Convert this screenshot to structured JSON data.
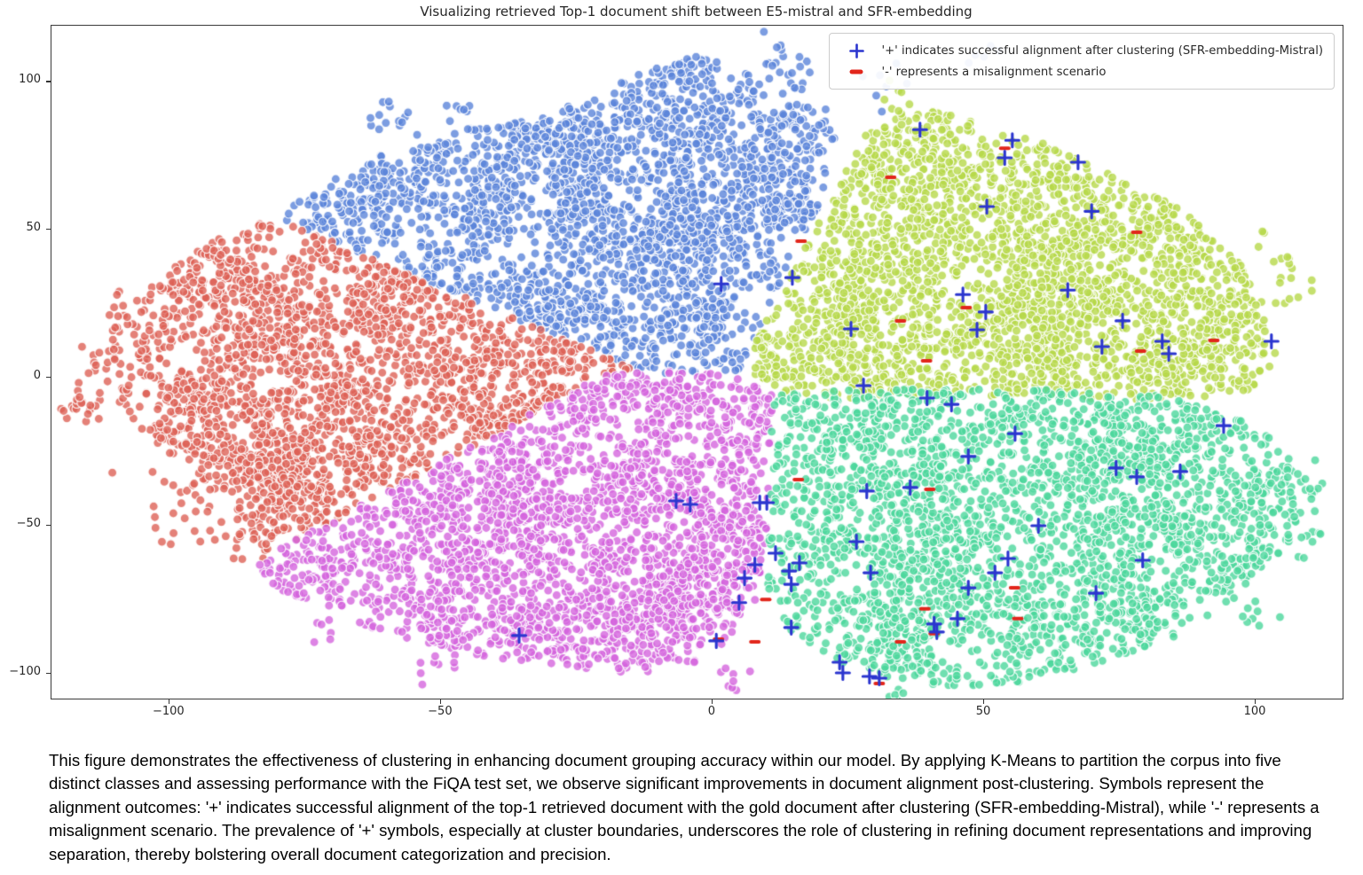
{
  "figure": {
    "title": "Visualizing retrieved Top-1 document shift between E5-mistral and SFR-embedding",
    "legend": {
      "items": [
        {
          "marker": "plus",
          "color": "#2b35cf",
          "label": "'+' indicates successful alignment after clustering (SFR-embedding-Mistral)"
        },
        {
          "marker": "minus",
          "color": "#e2261b",
          "label": "'-' represents a misalignment scenario"
        }
      ]
    },
    "caption": "This figure demonstrates the effectiveness of clustering in enhancing document grouping accuracy within our model. By applying K-Means to partition the corpus into five distinct classes and assessing performance with the FiQA test set, we observe significant improvements in document alignment post-clustering. Symbols represent the alignment outcomes: '+' indicates successful alignment of the top-1 retrieved document with the gold document after clustering (SFR-embedding-Mistral), while '-' represents a misalignment scenario. The prevalence of '+' symbols, especially at cluster boundaries, underscores the role of clustering in refining document representations and improving separation, thereby bolstering overall document categorization and precision."
  },
  "chart_data": {
    "type": "scatter",
    "title": "Visualizing retrieved Top-1 document shift between E5-mistral and SFR-embedding",
    "xlabel": "",
    "ylabel": "",
    "xlim": [
      -121.7,
      116.0
    ],
    "ylim": [
      -108.4,
      118.9
    ],
    "x_ticks": [
      -100,
      -50,
      0,
      50,
      100
    ],
    "y_ticks": [
      100,
      50,
      0,
      -50,
      -100
    ],
    "x_tick_labels": [
      "−100",
      "−50",
      "0",
      "50",
      "100"
    ],
    "y_tick_labels": [
      "100",
      "50",
      "0",
      "−50",
      "−100"
    ],
    "grid": false,
    "legend_position": "upper right",
    "point_alpha": 0.8,
    "clusters": [
      {
        "name": "cluster-blue-top",
        "color": "#5b84d9",
        "count": 2600,
        "polygon": [
          [
            -13,
            2
          ],
          [
            -80,
            54
          ],
          [
            -73,
            64
          ],
          [
            -60,
            76
          ],
          [
            -45,
            84
          ],
          [
            -32,
            88
          ],
          [
            -22,
            95
          ],
          [
            -12,
            104
          ],
          [
            -2,
            109
          ],
          [
            6,
            103
          ],
          [
            13,
            96
          ],
          [
            20,
            92
          ],
          [
            24,
            86
          ],
          [
            20,
            60
          ],
          [
            12,
            30
          ],
          [
            5,
            2
          ],
          [
            -4,
            -1
          ]
        ],
        "satellites": [
          [
            12,
            108,
            2.5,
            14
          ],
          [
            17,
            100,
            2,
            8
          ],
          [
            -60,
            88,
            3,
            14
          ],
          [
            -47,
            90,
            2,
            8
          ],
          [
            33,
            100,
            2.5,
            8
          ],
          [
            50,
            108,
            1.5,
            5
          ]
        ]
      },
      {
        "name": "cluster-red-left",
        "color": "#dd6156",
        "count": 2300,
        "polygon": [
          [
            -13,
            2
          ],
          [
            -80,
            54
          ],
          [
            -91,
            47
          ],
          [
            -100,
            37
          ],
          [
            -107,
            25
          ],
          [
            -111,
            12
          ],
          [
            -112,
            0
          ],
          [
            -108,
            -13
          ],
          [
            -101,
            -25
          ],
          [
            -92,
            -37
          ],
          [
            -85,
            -50
          ],
          [
            -83,
            -62
          ],
          [
            -20,
            1
          ]
        ],
        "satellites": [
          [
            -116,
            -8,
            3,
            22
          ],
          [
            -108,
            22,
            2.5,
            14
          ],
          [
            -97,
            -42,
            4,
            26
          ],
          [
            -88,
            -54,
            3,
            14
          ],
          [
            -113,
            8,
            2,
            10
          ]
        ]
      },
      {
        "name": "cluster-yellowgreen-right-top",
        "color": "#b6d84a",
        "count": 2900,
        "polygon": [
          [
            5,
            2
          ],
          [
            29,
            85
          ],
          [
            40,
            91
          ],
          [
            52,
            84
          ],
          [
            63,
            78
          ],
          [
            74,
            68
          ],
          [
            85,
            58
          ],
          [
            94,
            46
          ],
          [
            100,
            33
          ],
          [
            103,
            20
          ],
          [
            104,
            6
          ],
          [
            99,
            -5
          ],
          [
            85,
            -8
          ],
          [
            65,
            -7
          ],
          [
            45,
            -6
          ],
          [
            25,
            -7
          ],
          [
            14,
            -6
          ]
        ],
        "satellites": [
          [
            106,
            30,
            2.5,
            10
          ],
          [
            104,
            44,
            2,
            8
          ],
          [
            34,
            93,
            2,
            8
          ]
        ]
      },
      {
        "name": "cluster-magenta-bottom-left",
        "color": "#d465dd",
        "count": 2700,
        "polygon": [
          [
            -20,
            1
          ],
          [
            -85,
            -63
          ],
          [
            -80,
            -72
          ],
          [
            -70,
            -80
          ],
          [
            -57,
            -88
          ],
          [
            -42,
            -94
          ],
          [
            -27,
            -98
          ],
          [
            -13,
            -100
          ],
          [
            -3,
            -97
          ],
          [
            3,
            -88
          ],
          [
            8,
            -75
          ],
          [
            10,
            -55
          ],
          [
            11,
            -30
          ],
          [
            11,
            -5
          ],
          [
            0,
            3
          ]
        ],
        "satellites": [
          [
            -50,
            -96,
            2.5,
            10
          ],
          [
            3,
            -102,
            2,
            8
          ],
          [
            -70,
            -85,
            2,
            6
          ]
        ]
      },
      {
        "name": "cluster-green-bottom-right",
        "color": "#4cd79c",
        "count": 2900,
        "polygon": [
          [
            11,
            -5
          ],
          [
            10,
            -70
          ],
          [
            13,
            -84
          ],
          [
            22,
            -95
          ],
          [
            33,
            -102
          ],
          [
            47,
            -105
          ],
          [
            60,
            -102
          ],
          [
            73,
            -96
          ],
          [
            85,
            -88
          ],
          [
            95,
            -77
          ],
          [
            103,
            -64
          ],
          [
            108,
            -50
          ],
          [
            109,
            -35
          ],
          [
            104,
            -22
          ],
          [
            95,
            -12
          ],
          [
            82,
            -6
          ],
          [
            65,
            -4
          ],
          [
            45,
            -4
          ],
          [
            28,
            -4
          ]
        ],
        "satellites": [
          [
            112,
            -38,
            2.5,
            10
          ],
          [
            110,
            -55,
            2,
            8
          ],
          [
            35,
            -108,
            2,
            6
          ],
          [
            100,
            -80,
            2,
            8
          ]
        ]
      }
    ],
    "aligned_plus_markers": [
      [
        38.2,
        83.8
      ],
      [
        55.2,
        80.2
      ],
      [
        53.8,
        74.3
      ],
      [
        67.3,
        72.8
      ],
      [
        50.5,
        57.8
      ],
      [
        69.8,
        56.2
      ],
      [
        1.6,
        31.7
      ],
      [
        14.7,
        33.8
      ],
      [
        46.1,
        28.1
      ],
      [
        65.4,
        29.6
      ],
      [
        50.3,
        22.2
      ],
      [
        25.5,
        16.5
      ],
      [
        48.7,
        16.2
      ],
      [
        75.5,
        19.2
      ],
      [
        71.7,
        10.5
      ],
      [
        82.8,
        12.3
      ],
      [
        84.0,
        8.1
      ],
      [
        102.9,
        12.3
      ],
      [
        27.8,
        -2.7
      ],
      [
        39.5,
        -6.9
      ],
      [
        44.0,
        -9.0
      ],
      [
        94.1,
        -16.2
      ],
      [
        55.7,
        -18.9
      ],
      [
        47.1,
        -26.6
      ],
      [
        74.3,
        -30.5
      ],
      [
        78.1,
        -33.5
      ],
      [
        86.1,
        -31.7
      ],
      [
        -6.7,
        -41.6
      ],
      [
        -4.1,
        -42.8
      ],
      [
        8.7,
        -42.2
      ],
      [
        10.0,
        -42.2
      ],
      [
        28.4,
        -38.3
      ],
      [
        36.4,
        -37.1
      ],
      [
        60.0,
        -50.0
      ],
      [
        26.5,
        -55.4
      ],
      [
        11.6,
        -59.3
      ],
      [
        7.8,
        -63.2
      ],
      [
        16.0,
        -62.6
      ],
      [
        14.1,
        -65.3
      ],
      [
        5.9,
        -67.7
      ],
      [
        14.5,
        -69.8
      ],
      [
        29.1,
        -65.9
      ],
      [
        54.4,
        -61.1
      ],
      [
        52.0,
        -65.9
      ],
      [
        47.1,
        -71.0
      ],
      [
        79.2,
        -61.7
      ],
      [
        4.9,
        -76.0
      ],
      [
        70.6,
        -72.8
      ],
      [
        14.5,
        -84.4
      ],
      [
        0.7,
        -88.9
      ],
      [
        40.8,
        -83.2
      ],
      [
        45.1,
        -81.4
      ],
      [
        41.3,
        -85.9
      ],
      [
        23.4,
        -96.1
      ],
      [
        24.0,
        -99.7
      ],
      [
        28.9,
        -100.9
      ],
      [
        30.7,
        -101.5
      ],
      [
        -35.6,
        -87.1
      ]
    ],
    "misaligned_minus_markers": [
      [
        53.8,
        77.5
      ],
      [
        32.8,
        67.7
      ],
      [
        16.3,
        46.1
      ],
      [
        78.1,
        49.1
      ],
      [
        46.7,
        23.7
      ],
      [
        34.6,
        19.2
      ],
      [
        92.3,
        12.6
      ],
      [
        78.8,
        9.0
      ],
      [
        39.4,
        5.7
      ],
      [
        15.8,
        -34.4
      ],
      [
        40.0,
        -37.7
      ],
      [
        9.8,
        -74.9
      ],
      [
        55.6,
        -71.0
      ],
      [
        39.1,
        -78.1
      ],
      [
        40.8,
        -86.5
      ],
      [
        56.2,
        -81.4
      ],
      [
        1.1,
        -88.3
      ],
      [
        7.8,
        -89.2
      ],
      [
        34.6,
        -89.2
      ],
      [
        30.7,
        -103.3
      ]
    ],
    "marker_style": {
      "plus_color": "#2b35cf",
      "minus_color": "#e2261b"
    }
  }
}
